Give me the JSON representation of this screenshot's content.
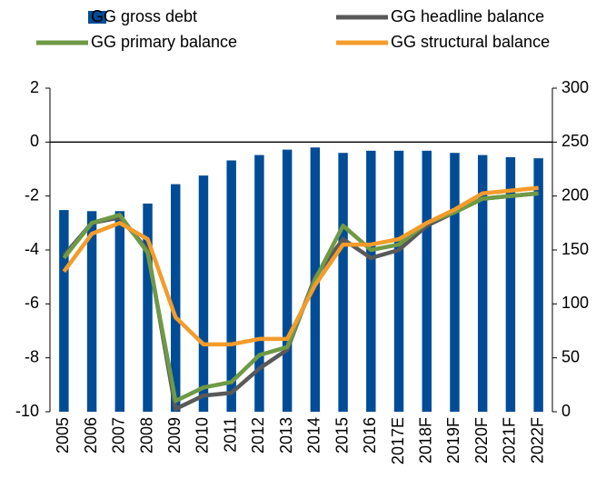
{
  "chart_data": {
    "type": "bar",
    "categories": [
      "2005",
      "2006",
      "2007",
      "2008",
      "2009",
      "2010",
      "2011",
      "2012",
      "2013",
      "2014",
      "2015",
      "2016",
      "2017E",
      "2018F",
      "2019F",
      "2020F",
      "2021F",
      "2022F"
    ],
    "series": [
      {
        "name": "GG gross debt",
        "type": "bar",
        "axis": "y2",
        "color": "#004c97",
        "values": [
          187,
          186,
          186,
          193,
          211,
          219,
          233,
          238,
          243,
          245,
          240,
          242,
          242,
          242,
          240,
          238,
          236,
          235
        ]
      },
      {
        "name": "GG headline balance",
        "type": "line",
        "color": "#595959",
        "values": [
          -4.2,
          -3.0,
          -2.8,
          -4.0,
          -9.9,
          -9.4,
          -9.3,
          -8.4,
          -7.7,
          -5.0,
          -3.6,
          -4.3,
          -4.0,
          -3.1,
          -2.6,
          -2.1,
          -2.0,
          -1.9
        ]
      },
      {
        "name": "GG primary balance",
        "type": "line",
        "color": "#6f9a45",
        "values": [
          -4.3,
          -3.0,
          -2.7,
          -4.1,
          -9.6,
          -9.1,
          -8.9,
          -7.9,
          -7.6,
          -5.1,
          -3.1,
          -4.0,
          -3.8,
          -3.0,
          -2.6,
          -2.1,
          -2.0,
          -1.9
        ]
      },
      {
        "name": "GG structural balance",
        "type": "line",
        "color": "#f39c2b",
        "values": [
          -4.8,
          -3.4,
          -3.0,
          -3.6,
          -6.5,
          -7.5,
          -7.5,
          -7.3,
          -7.3,
          -5.3,
          -3.8,
          -3.8,
          -3.6,
          -3.0,
          -2.5,
          -1.9,
          -1.8,
          -1.7
        ]
      }
    ],
    "ylim": [
      -10,
      2
    ],
    "yticks": [
      -10,
      -8,
      -6,
      -4,
      -2,
      0,
      2
    ],
    "y2lim": [
      0,
      300
    ],
    "y2ticks": [
      0,
      50,
      100,
      150,
      200,
      250,
      300
    ]
  }
}
